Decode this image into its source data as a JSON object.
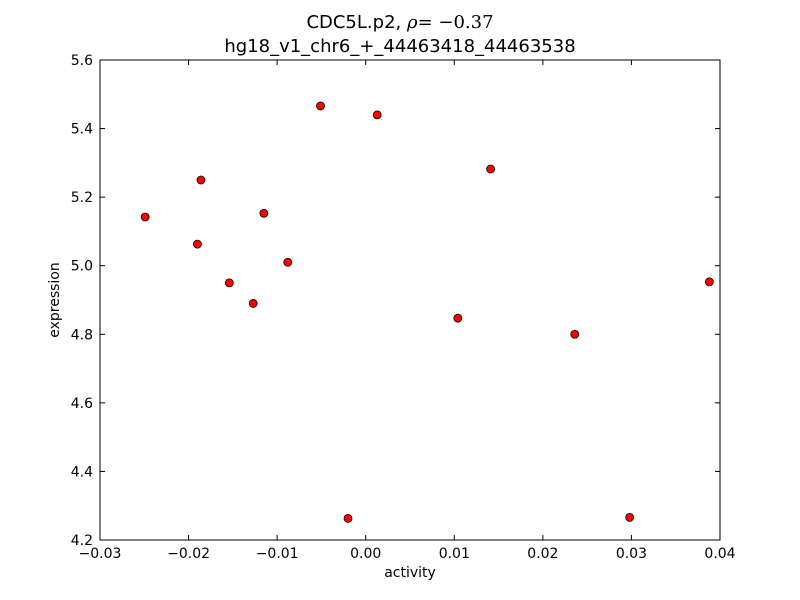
{
  "chart_data": {
    "type": "scatter",
    "title": {
      "gene": "CDC5L.p2,",
      "rho_symbol": "ρ",
      "rho_value": "= −0.37",
      "subtitle": "hg18_v1_chr6_+_44463418_44463538"
    },
    "xlabel": "activity",
    "ylabel": "expression",
    "xlim": [
      -0.03,
      0.04
    ],
    "ylim": [
      4.2,
      5.6
    ],
    "x_ticks": [
      -0.03,
      -0.02,
      -0.01,
      0.0,
      0.01,
      0.02,
      0.03,
      0.04
    ],
    "x_tick_labels": [
      "−0.03",
      "−0.02",
      "−0.01",
      "0.00",
      "0.01",
      "0.02",
      "0.03",
      "0.04"
    ],
    "y_ticks": [
      4.2,
      4.4,
      4.6,
      4.8,
      5.0,
      5.2,
      5.4,
      5.6
    ],
    "y_tick_labels": [
      "4.2",
      "4.4",
      "4.6",
      "4.8",
      "5.0",
      "5.2",
      "5.4",
      "5.6"
    ],
    "grid": false,
    "marker_color": "#ff0000",
    "marker_edge_color": "#000000",
    "points": [
      {
        "x": -0.0249,
        "y": 5.142
      },
      {
        "x": -0.019,
        "y": 5.063
      },
      {
        "x": -0.0186,
        "y": 5.25
      },
      {
        "x": -0.0154,
        "y": 4.95
      },
      {
        "x": -0.0127,
        "y": 4.89
      },
      {
        "x": -0.0115,
        "y": 5.153
      },
      {
        "x": -0.0088,
        "y": 5.01
      },
      {
        "x": -0.0051,
        "y": 5.466
      },
      {
        "x": -0.002,
        "y": 4.263
      },
      {
        "x": 0.0013,
        "y": 5.44
      },
      {
        "x": 0.0104,
        "y": 4.847
      },
      {
        "x": 0.0141,
        "y": 5.282
      },
      {
        "x": 0.0236,
        "y": 4.8
      },
      {
        "x": 0.0298,
        "y": 4.266
      },
      {
        "x": 0.0388,
        "y": 4.953
      }
    ]
  }
}
